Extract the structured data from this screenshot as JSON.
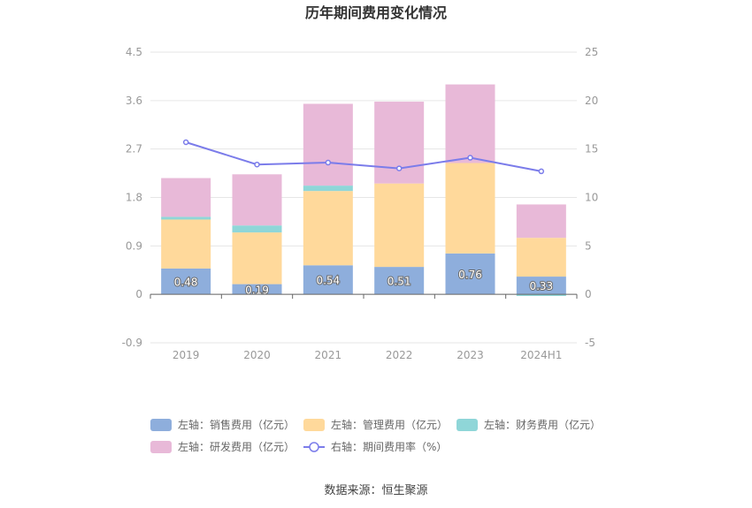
{
  "chart_data": {
    "type": "bar",
    "title": "历年期间费用变化情况",
    "categories": [
      "2019",
      "2020",
      "2021",
      "2022",
      "2023",
      "2024H1"
    ],
    "left_axis": {
      "min": -0.9,
      "max": 4.5,
      "ticks": [
        "4.5",
        "3.6",
        "2.7",
        "1.8",
        "0.9",
        "0",
        "-0.9"
      ]
    },
    "right_axis": {
      "min": -5,
      "max": 25,
      "ticks": [
        "25",
        "20",
        "15",
        "10",
        "5",
        "0",
        "-5"
      ]
    },
    "series": [
      {
        "name": "左轴：销售费用（亿元）",
        "kind": "bar",
        "axis": "left",
        "color": "#8eaedc",
        "values": [
          0.48,
          0.19,
          0.54,
          0.51,
          0.76,
          0.33
        ],
        "labels": [
          "0.48",
          "0.19",
          "0.54",
          "0.51",
          "0.76",
          "0.33"
        ]
      },
      {
        "name": "左轴：管理费用（亿元）",
        "kind": "bar",
        "axis": "left",
        "color": "#ffd99b",
        "values": [
          0.91,
          0.96,
          1.38,
          1.55,
          1.68,
          0.72
        ]
      },
      {
        "name": "左轴：财务费用（亿元）",
        "kind": "bar",
        "axis": "left",
        "color": "#8fd6d8",
        "values": [
          0.05,
          0.13,
          0.1,
          0.0,
          0.0,
          -0.03
        ]
      },
      {
        "name": "左轴：研发费用（亿元）",
        "kind": "bar",
        "axis": "left",
        "color": "#e8b9d8",
        "values": [
          0.72,
          0.95,
          1.52,
          1.52,
          1.46,
          0.62
        ]
      },
      {
        "name": "右轴：期间费用率（%）",
        "kind": "line",
        "axis": "right",
        "color": "#7b7cea",
        "values": [
          15.7,
          13.4,
          13.6,
          13.0,
          14.1,
          12.7
        ]
      }
    ],
    "legend_position": "bottom",
    "grid": true
  },
  "source": "数据来源：恒生聚源"
}
